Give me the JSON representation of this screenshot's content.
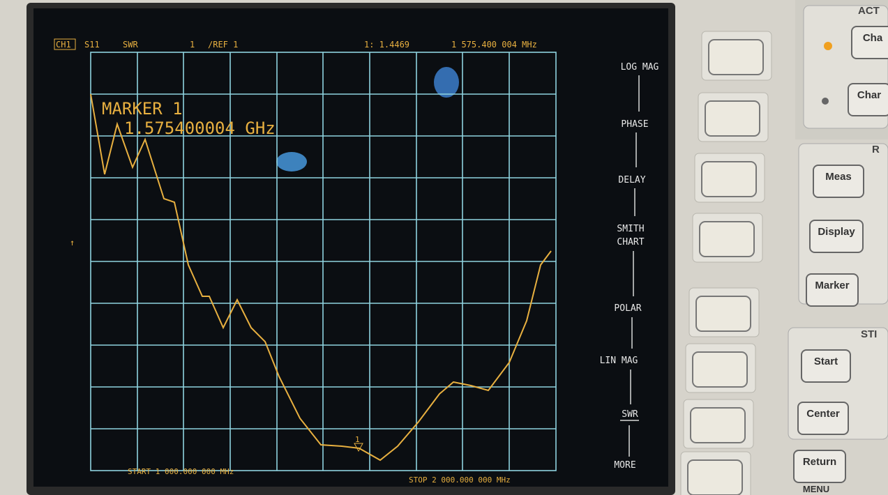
{
  "header": {
    "channel": "CH1",
    "parameter": "S11",
    "format": "SWR",
    "scale": "1",
    "reference": "/REF 1",
    "marker_readout": "1: 1.4469",
    "marker_frequency": "1 575.400 004 MHz"
  },
  "marker": {
    "title": "MARKER 1",
    "frequency": "1.575400004 GHz",
    "number": "1"
  },
  "softkeys": [
    "LOG MAG",
    "PHASE",
    "DELAY",
    "SMITH",
    "CHART",
    "POLAR",
    "LIN MAG",
    "SWR",
    "MORE"
  ],
  "footer": {
    "start": "START 1 000.000 000 MHz",
    "stop": "STOP 2 000.000 000 MHz"
  },
  "panel": {
    "sections": [
      "ACT",
      "R",
      "STI"
    ],
    "buttons": [
      "Cha",
      "Char",
      "Meas",
      "Display",
      "Marker",
      "Start",
      "Center",
      "Return",
      "MENU"
    ]
  }
}
